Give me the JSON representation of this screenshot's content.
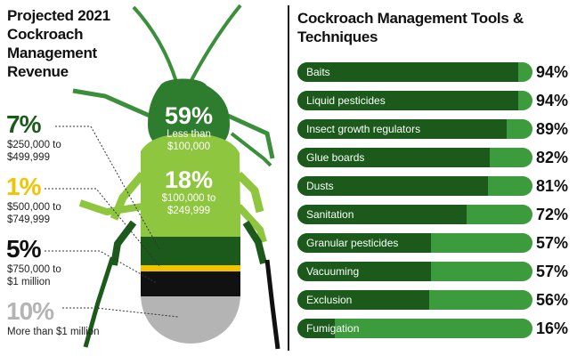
{
  "left": {
    "title": "Projected 2021 Cockroach Management Revenue",
    "segments": [
      {
        "pct": "59%",
        "range": "Less than $100,000"
      },
      {
        "pct": "18%",
        "range": "$100,000 to $249,999"
      },
      {
        "pct": "7%",
        "range": "$250,000 to $499,999"
      },
      {
        "pct": "1%",
        "range": "$500,000 to $749,999"
      },
      {
        "pct": "5%",
        "range": "$750,000 to $1 million"
      },
      {
        "pct": "10%",
        "range": "More than $1 million"
      }
    ]
  },
  "right": {
    "title": "Cockroach Management Tools & Techniques"
  },
  "colors": {
    "dark_green": "#1c5a1c",
    "mid_green": "#2e7d2e",
    "light_green": "#8fc63f",
    "bar_track": "#3c9b3c",
    "yellow": "#f2c400",
    "black": "#111111",
    "gray": "#b4b4b4"
  },
  "chart_data": [
    {
      "type": "pie",
      "title": "Projected 2021 Cockroach Management Revenue",
      "categories": [
        "Less than $100,000",
        "$100,000 to $249,999",
        "$250,000 to $499,999",
        "$500,000 to $749,999",
        "$750,000 to $1 million",
        "More than $1 million"
      ],
      "values": [
        59,
        18,
        7,
        1,
        5,
        10
      ]
    },
    {
      "type": "bar",
      "title": "Cockroach Management Tools & Techniques",
      "categories": [
        "Baits",
        "Liquid pesticides",
        "Insect growth regulators",
        "Glue boards",
        "Dusts",
        "Sanitation",
        "Granular pesticides",
        "Vacuuming",
        "Exclusion",
        "Fumigation"
      ],
      "values": [
        94,
        94,
        89,
        82,
        81,
        72,
        57,
        57,
        56,
        16
      ],
      "value_labels": [
        "94%",
        "94%",
        "89%",
        "82%",
        "81%",
        "72%",
        "57%",
        "57%",
        "56%",
        "16%"
      ],
      "ylim": [
        0,
        100
      ]
    }
  ]
}
